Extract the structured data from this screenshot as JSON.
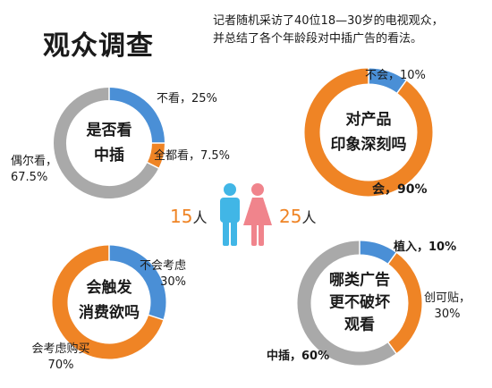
{
  "header": {
    "title": "观众调查",
    "description_line1": "记者随机采访了40位18—30岁的电视观众，",
    "description_line2": "并总结了各个年龄段对中插广告的看法。"
  },
  "colors": {
    "blue": "#4a8fd6",
    "orange": "#ef8425",
    "gray": "#a9a9a9",
    "male": "#41b6e6",
    "female": "#f0848c"
  },
  "counts": {
    "male": {
      "value": "15",
      "unit": "人"
    },
    "female": {
      "value": "25",
      "unit": "人"
    }
  },
  "chart_data": [
    {
      "type": "pie",
      "center_lines": [
        "是否看",
        "中插"
      ],
      "slices": [
        {
          "value": 25,
          "color": "blue",
          "label_lines": [
            "不看，25%"
          ]
        },
        {
          "value": 7.5,
          "color": "orange",
          "label_lines": [
            "全都看，7.5%"
          ]
        },
        {
          "value": 67.5,
          "color": "gray",
          "label_lines": [
            "偶尔看，",
            "67.5%"
          ]
        }
      ]
    },
    {
      "type": "pie",
      "center_lines": [
        "对产品",
        "印象深刻吗"
      ],
      "slices": [
        {
          "value": 10,
          "color": "blue",
          "label_lines": [
            "不会，10%"
          ]
        },
        {
          "value": 90,
          "color": "orange",
          "label_lines": [
            "会，90%"
          ]
        }
      ]
    },
    {
      "type": "pie",
      "center_lines": [
        "会触发",
        "消费欲吗"
      ],
      "slices": [
        {
          "value": 30,
          "color": "blue",
          "label_lines": [
            "不会考虑",
            "30%"
          ]
        },
        {
          "value": 70,
          "color": "orange",
          "label_lines": [
            "会考虑购买",
            "70%"
          ]
        }
      ]
    },
    {
      "type": "pie",
      "center_lines": [
        "哪类广告",
        "更不破坏",
        "观看"
      ],
      "slices": [
        {
          "value": 10,
          "color": "blue",
          "label_lines": [
            "植入，10%"
          ]
        },
        {
          "value": 30,
          "color": "orange",
          "label_lines": [
            "创可贴，",
            "30%"
          ]
        },
        {
          "value": 60,
          "color": "gray",
          "label_lines": [
            "中插，60%"
          ]
        }
      ]
    }
  ]
}
